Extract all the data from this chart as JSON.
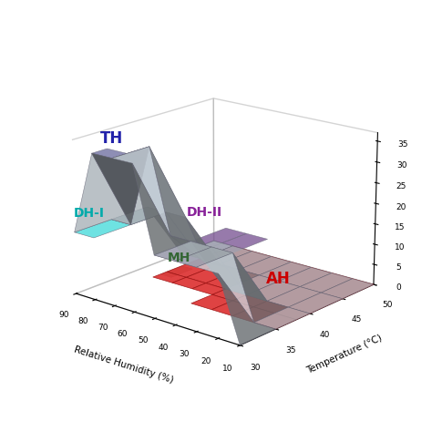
{
  "xlabel": "Relative Humidity (%)",
  "ylabel": "Temperature (°C)",
  "phases": {
    "TH": {
      "color": "#8888cc",
      "label_color": "#2222aa"
    },
    "DH-II": {
      "color": "#9966bb",
      "label_color": "#882299"
    },
    "DH-I": {
      "color": "#55dddd",
      "label_color": "#00aaaa"
    },
    "MH": {
      "color": "#88aa88",
      "label_color": "#336633"
    },
    "AH": {
      "color": "#dd3333",
      "label_color": "#cc0000"
    }
  },
  "surface_color": "#dde8f0",
  "edge_color": "#666677",
  "background_color": "#ffffff",
  "elev": 18,
  "azim": -50
}
